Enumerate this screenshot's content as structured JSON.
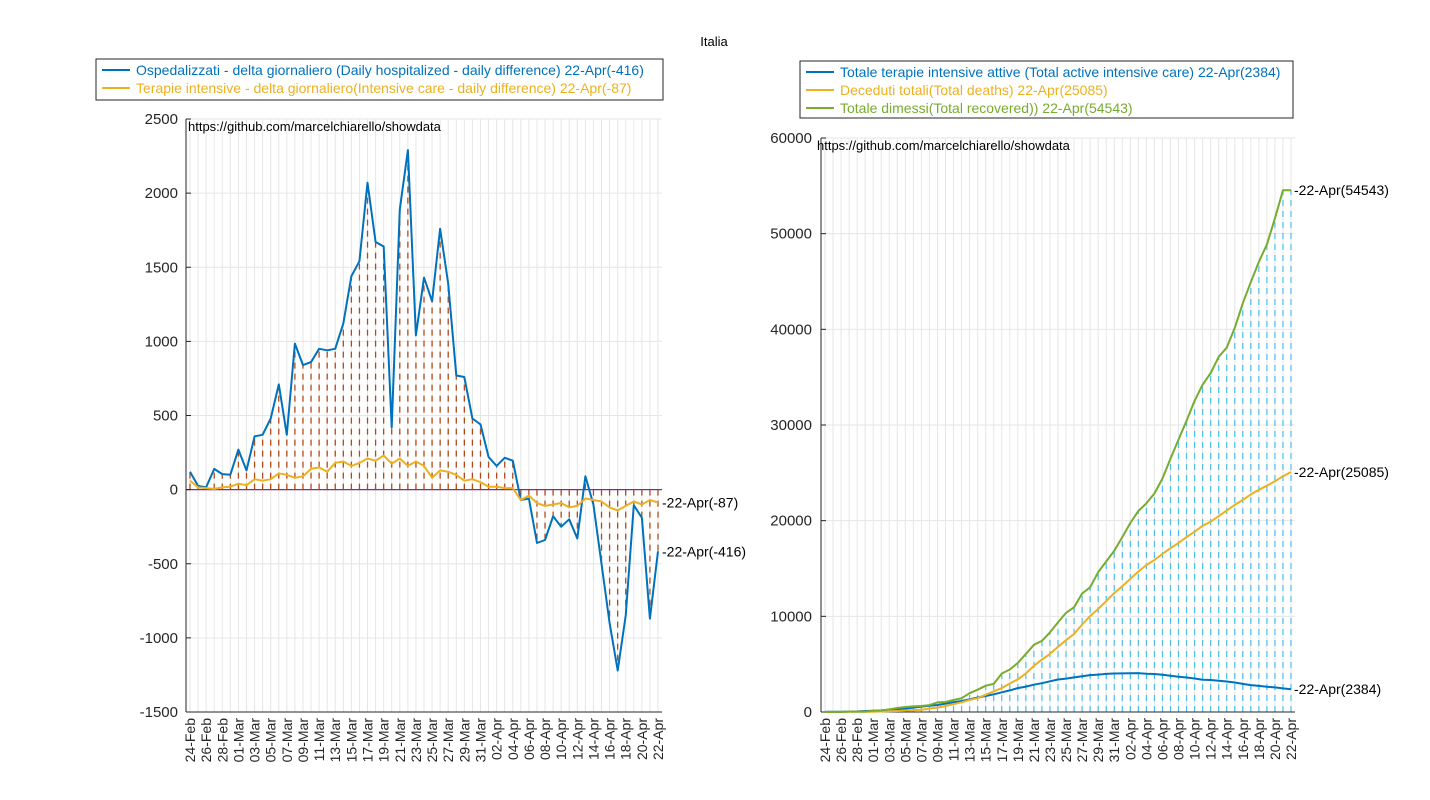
{
  "figure_title": "Italia",
  "watermark": "https://github.com/marcelchiarello/showdata",
  "colors": {
    "blue": "#0072bd",
    "orange": "#edb120",
    "green": "#77ac30",
    "stem_left": "#b34a1a",
    "stem_right": "#4dbeee",
    "zero_line": "#7e2f8e"
  },
  "chart_data": [
    {
      "type": "line",
      "x_tick_labels": [
        "24-Feb",
        "26-Feb",
        "28-Feb",
        "01-Mar",
        "03-Mar",
        "05-Mar",
        "07-Mar",
        "09-Mar",
        "11-Mar",
        "13-Mar",
        "15-Mar",
        "17-Mar",
        "19-Mar",
        "21-Mar",
        "23-Mar",
        "25-Mar",
        "27-Mar",
        "29-Mar",
        "31-Mar",
        "02-Apr",
        "04-Apr",
        "06-Apr",
        "08-Apr",
        "10-Apr",
        "12-Apr",
        "14-Apr",
        "16-Apr",
        "18-Apr",
        "20-Apr",
        "22-Apr"
      ],
      "ylim": [
        -1500,
        2500
      ],
      "yticks": [
        -1500,
        -1000,
        -500,
        0,
        500,
        1000,
        1500,
        2000,
        2500
      ],
      "grid": true,
      "legend_position": "top",
      "series": [
        {
          "name": "Ospedalizzati - delta giornaliero (Daily hospitalized - daily difference) 22-Apr(-416)",
          "end_label": "22-Apr(-416)",
          "color": "#0072bd",
          "values": [
            120,
            25,
            15,
            140,
            105,
            100,
            270,
            130,
            360,
            370,
            480,
            710,
            370,
            985,
            840,
            860,
            950,
            940,
            950,
            1120,
            1440,
            1540,
            2070,
            1670,
            1640,
            420,
            1890,
            2290,
            1040,
            1430,
            1270,
            1760,
            1390,
            770,
            760,
            480,
            440,
            220,
            160,
            215,
            195,
            -70,
            -60,
            -360,
            -340,
            -180,
            -250,
            -200,
            -330,
            90,
            -100,
            -500,
            -900,
            -1220,
            -850,
            -105,
            -190,
            -870,
            -416
          ]
        },
        {
          "name": "Terapie intensive - delta giornaliero(Intensive care - daily difference) 22-Apr(-87)",
          "end_label": "22-Apr(-87)",
          "color": "#edb120",
          "values": [
            60,
            15,
            10,
            5,
            15,
            20,
            40,
            30,
            70,
            60,
            70,
            110,
            100,
            80,
            90,
            140,
            150,
            120,
            180,
            190,
            160,
            180,
            210,
            195,
            230,
            175,
            210,
            160,
            190,
            160,
            80,
            130,
            120,
            100,
            60,
            70,
            50,
            20,
            20,
            10,
            10,
            -70,
            -40,
            -90,
            -110,
            -100,
            -90,
            -120,
            -110,
            -60,
            -70,
            -80,
            -120,
            -140,
            -110,
            -80,
            -100,
            -70,
            -87
          ]
        }
      ]
    },
    {
      "type": "line",
      "x_tick_labels": [
        "24-Feb",
        "26-Feb",
        "28-Feb",
        "01-Mar",
        "03-Mar",
        "05-Mar",
        "07-Mar",
        "09-Mar",
        "11-Mar",
        "13-Mar",
        "15-Mar",
        "17-Mar",
        "19-Mar",
        "21-Mar",
        "23-Mar",
        "25-Mar",
        "27-Mar",
        "29-Mar",
        "31-Mar",
        "02-Apr",
        "04-Apr",
        "06-Apr",
        "08-Apr",
        "10-Apr",
        "12-Apr",
        "14-Apr",
        "16-Apr",
        "18-Apr",
        "20-Apr",
        "22-Apr"
      ],
      "ylim": [
        0,
        60000
      ],
      "yticks": [
        0,
        10000,
        20000,
        30000,
        40000,
        50000,
        60000
      ],
      "grid": true,
      "legend_position": "top",
      "series": [
        {
          "name": "Totale terapie intensive attive (Total active intensive care) 22-Apr(2384)",
          "end_label": "22-Apr(2384)",
          "color": "#0072bd",
          "values": [
            26,
            35,
            36,
            56,
            64,
            105,
            140,
            166,
            229,
            295,
            351,
            462,
            567,
            650,
            733,
            877,
            1028,
            1153,
            1328,
            1518,
            1672,
            1851,
            2060,
            2257,
            2498,
            2655,
            2857,
            3009,
            3204,
            3396,
            3489,
            3612,
            3732,
            3856,
            3906,
            3981,
            4023,
            4035,
            4053,
            4068,
            3994,
            3977,
            3898,
            3792,
            3693,
            3605,
            3497,
            3381,
            3343,
            3260,
            3186,
            3079,
            2936,
            2812,
            2733,
            2635,
            2573,
            2471,
            2384
          ]
        },
        {
          "name": "Deceduti totali(Total deaths) 22-Apr(25085)",
          "end_label": "22-Apr(25085)",
          "color": "#edb120",
          "values": [
            7,
            10,
            12,
            17,
            21,
            29,
            34,
            52,
            79,
            107,
            148,
            197,
            233,
            366,
            463,
            631,
            827,
            1016,
            1266,
            1441,
            1809,
            2158,
            2503,
            2978,
            3405,
            4032,
            4825,
            5476,
            6077,
            6820,
            7503,
            8165,
            9134,
            10023,
            10779,
            11591,
            12428,
            13155,
            13915,
            14681,
            15362,
            15887,
            16523,
            17127,
            17669,
            18279,
            18849,
            19468,
            19899,
            20465,
            21067,
            21645,
            22170,
            22745,
            23227,
            23660,
            24114,
            24648,
            25085
          ]
        },
        {
          "name": "Totale dimessi(Total recovered)) 22-Apr(54543)",
          "end_label": "22-Apr(54543)",
          "color": "#77ac30",
          "values": [
            1,
            1,
            3,
            45,
            46,
            46,
            149,
            160,
            276,
            414,
            523,
            589,
            622,
            724,
            1004,
            1045,
            1258,
            1439,
            1966,
            2335,
            2749,
            2941,
            4025,
            4440,
            5129,
            6072,
            7024,
            7432,
            8326,
            9362,
            10361,
            10950,
            12384,
            13030,
            14620,
            15729,
            16847,
            18278,
            19758,
            20996,
            21815,
            22837,
            24392,
            26491,
            28470,
            30455,
            32534,
            34211,
            35435,
            37130,
            38092,
            40164,
            42727,
            44927,
            47055,
            48877,
            51600,
            54543,
            54543
          ]
        }
      ]
    }
  ]
}
